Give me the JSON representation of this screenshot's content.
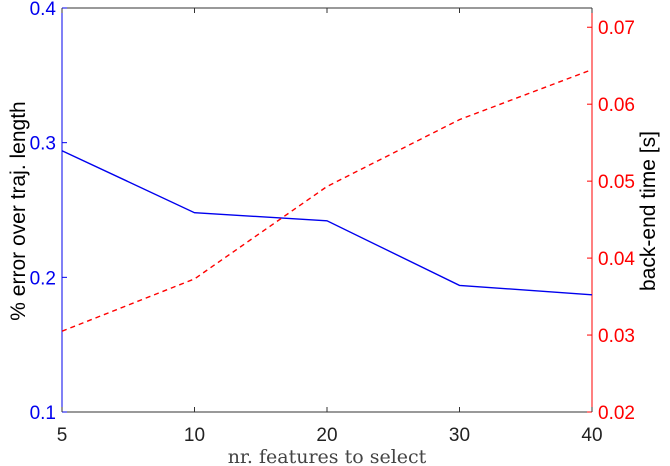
{
  "chart_data": {
    "type": "line",
    "x": [
      5,
      10,
      20,
      30,
      40
    ],
    "xticks": [
      "5",
      "10",
      "20",
      "30",
      "40"
    ],
    "xlabel": "nr. features to select",
    "series": [
      {
        "axis": "left",
        "color": "#0000ee",
        "style": "solid",
        "values": [
          0.294,
          0.248,
          0.242,
          0.194,
          0.187
        ]
      },
      {
        "axis": "right",
        "color": "#ff0000",
        "style": "dashed",
        "values": [
          0.0305,
          0.0373,
          0.0493,
          0.058,
          0.0645
        ]
      }
    ],
    "y_left": {
      "label": "% error over traj. length",
      "ylim": [
        0.1,
        0.4
      ],
      "ticks": [
        0.1,
        0.2,
        0.3,
        0.4
      ],
      "tick_labels": [
        "0.1",
        "0.2",
        "0.3",
        "0.4"
      ],
      "color": "#0000ee"
    },
    "y_right": {
      "label": "back-end time [s]",
      "ylim": [
        0.02,
        0.0725
      ],
      "ticks": [
        0.02,
        0.03,
        0.04,
        0.05,
        0.06,
        0.07
      ],
      "tick_labels": [
        "0.02",
        "0.03",
        "0.04",
        "0.05",
        "0.06",
        "0.07"
      ],
      "color": "#ff0000"
    },
    "grid": false,
    "legend": "none"
  }
}
